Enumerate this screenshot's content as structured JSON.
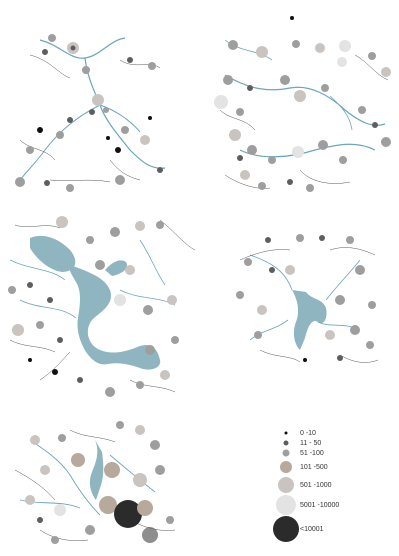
{
  "legend": {
    "items": [
      {
        "label": "0 -10",
        "color": "#111111"
      },
      {
        "label": "11 - 50",
        "color": "#5e5e5e"
      },
      {
        "label": "51 -100",
        "color": "#9e9e9e"
      },
      {
        "label": "101 -500",
        "color": "#b7aa9c"
      },
      {
        "label": "501 -1000",
        "color": "#c9c4c0"
      },
      {
        "label": "5001 -10000",
        "color": "#e3e3e3"
      },
      {
        "label": "<10001",
        "color": "#2b2b2b"
      }
    ]
  },
  "colors": {
    "water": "#8fb6c0",
    "river": "#6aa6bd",
    "road": "#555555"
  }
}
